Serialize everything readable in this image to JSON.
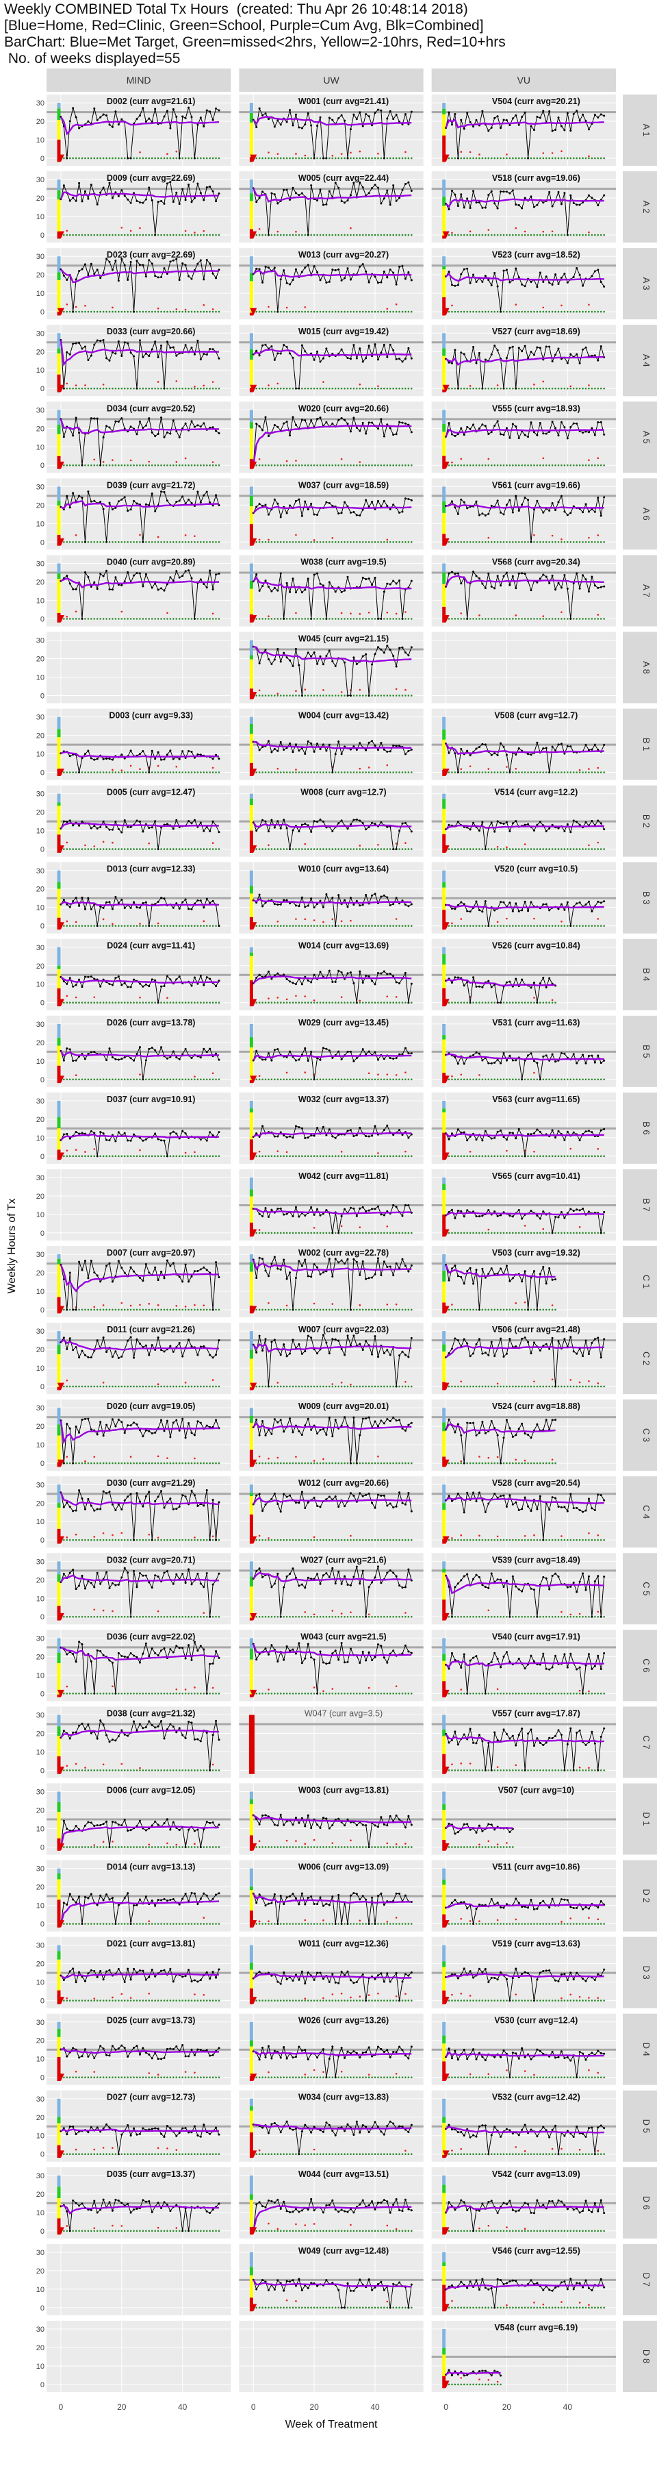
{
  "header": {
    "line1": "Weekly COMBINED Total Tx Hours  (created: Thu Apr 26 10:48:14 2018)",
    "line2": "[Blue=Home, Red=Clinic, Green=School, Purple=Cum Avg, Blk=Combined]",
    "line3": "BarChart: Blue=Met Target, Green=missed<2hrs, Yellow=2-10hrs, Red=10+hrs",
    "line4": " No. of weeks displayed=55"
  },
  "colors": {
    "panel_bg": "#ebebeb",
    "strip_bg": "#d9d9d9",
    "combined": "#000000",
    "home": "#1f3fd1",
    "clinic": "#e8201c",
    "school": "#2a8a2a",
    "cum_avg": "#9b00e0",
    "target_line": "#a8a8a8",
    "bar_met": "#7fb3e0",
    "bar_missed2": "#22cc22",
    "bar_2to10": "#ffff00",
    "bar_10plus": "#dd0000"
  },
  "chart_data": {
    "type": "line",
    "xlabel": "Week of Treatment",
    "ylabel": "Weekly Hours of Tx",
    "x_ticks": [
      "0",
      "20",
      "40"
    ],
    "y_ticks": [
      "0",
      "10",
      "20",
      "30"
    ],
    "xlim": [
      -2,
      55
    ],
    "ylim": [
      -3,
      33
    ],
    "columns": [
      "MIND",
      "UW",
      "VU"
    ],
    "rows": [
      {
        "label": "A\n1",
        "cells": [
          {
            "id": "D002",
            "avg": "21.61"
          },
          {
            "id": "W001",
            "avg": "21.41"
          },
          {
            "id": "V504",
            "avg": "20.21"
          }
        ]
      },
      {
        "label": "A\n2",
        "cells": [
          {
            "id": "D009",
            "avg": "22.69"
          },
          {
            "id": "W005",
            "avg": "22.44"
          },
          {
            "id": "V518",
            "avg": "19.06"
          }
        ]
      },
      {
        "label": "A\n3",
        "cells": [
          {
            "id": "D023",
            "avg": "22.69"
          },
          {
            "id": "W013",
            "avg": "20.27"
          },
          {
            "id": "V523",
            "avg": "18.52"
          }
        ]
      },
      {
        "label": "A\n4",
        "cells": [
          {
            "id": "D033",
            "avg": "20.66"
          },
          {
            "id": "W015",
            "avg": "19.42"
          },
          {
            "id": "V527",
            "avg": "18.69"
          }
        ]
      },
      {
        "label": "A\n5",
        "cells": [
          {
            "id": "D034",
            "avg": "20.52"
          },
          {
            "id": "W020",
            "avg": "20.66"
          },
          {
            "id": "V555",
            "avg": "18.93"
          }
        ]
      },
      {
        "label": "A\n6",
        "cells": [
          {
            "id": "D039",
            "avg": "21.72"
          },
          {
            "id": "W037",
            "avg": "18.59"
          },
          {
            "id": "V561",
            "avg": "19.66"
          }
        ]
      },
      {
        "label": "A\n7",
        "cells": [
          {
            "id": "D040",
            "avg": "20.89"
          },
          {
            "id": "W038",
            "avg": "19.5"
          },
          {
            "id": "V568",
            "avg": "20.34"
          }
        ]
      },
      {
        "label": "A\n8",
        "cells": [
          null,
          {
            "id": "W045",
            "avg": "21.15"
          },
          null
        ]
      },
      {
        "label": "B\n1",
        "cells": [
          {
            "id": "D003",
            "avg": "9.33"
          },
          {
            "id": "W004",
            "avg": "13.42"
          },
          {
            "id": "V508",
            "avg": "12.7"
          }
        ]
      },
      {
        "label": "B\n2",
        "cells": [
          {
            "id": "D005",
            "avg": "12.47"
          },
          {
            "id": "W008",
            "avg": "12.7"
          },
          {
            "id": "V514",
            "avg": "12.2"
          }
        ]
      },
      {
        "label": "B\n3",
        "cells": [
          {
            "id": "D013",
            "avg": "12.33"
          },
          {
            "id": "W010",
            "avg": "13.64"
          },
          {
            "id": "V520",
            "avg": "10.5"
          }
        ]
      },
      {
        "label": "B\n4",
        "cells": [
          {
            "id": "D024",
            "avg": "11.41"
          },
          {
            "id": "W014",
            "avg": "13.69"
          },
          {
            "id": "V526",
            "avg": "10.84"
          }
        ]
      },
      {
        "label": "B\n5",
        "cells": [
          {
            "id": "D026",
            "avg": "13.78"
          },
          {
            "id": "W029",
            "avg": "13.45"
          },
          {
            "id": "V531",
            "avg": "11.63"
          }
        ]
      },
      {
        "label": "B\n6",
        "cells": [
          {
            "id": "D037",
            "avg": "10.91"
          },
          {
            "id": "W032",
            "avg": "13.37"
          },
          {
            "id": "V563",
            "avg": "11.65"
          }
        ]
      },
      {
        "label": "B\n7",
        "cells": [
          null,
          {
            "id": "W042",
            "avg": "11.81"
          },
          {
            "id": "V565",
            "avg": "10.41"
          }
        ]
      },
      {
        "label": "C\n1",
        "cells": [
          {
            "id": "D007",
            "avg": "20.97"
          },
          {
            "id": "W002",
            "avg": "22.78"
          },
          {
            "id": "V503",
            "avg": "19.32"
          }
        ]
      },
      {
        "label": "C\n2",
        "cells": [
          {
            "id": "D011",
            "avg": "21.26"
          },
          {
            "id": "W007",
            "avg": "22.03"
          },
          {
            "id": "V506",
            "avg": "21.48"
          }
        ]
      },
      {
        "label": "C\n3",
        "cells": [
          {
            "id": "D020",
            "avg": "19.05"
          },
          {
            "id": "W009",
            "avg": "20.01"
          },
          {
            "id": "V524",
            "avg": "18.88"
          }
        ]
      },
      {
        "label": "C\n4",
        "cells": [
          {
            "id": "D030",
            "avg": "21.29"
          },
          {
            "id": "W012",
            "avg": "20.66"
          },
          {
            "id": "V528",
            "avg": "20.54"
          }
        ]
      },
      {
        "label": "C\n5",
        "cells": [
          {
            "id": "D032",
            "avg": "20.71"
          },
          {
            "id": "W027",
            "avg": "21.6"
          },
          {
            "id": "V539",
            "avg": "18.49"
          }
        ]
      },
      {
        "label": "C\n6",
        "cells": [
          {
            "id": "D036",
            "avg": "22.02"
          },
          {
            "id": "W043",
            "avg": "21.5"
          },
          {
            "id": "V540",
            "avg": "17.91"
          }
        ]
      },
      {
        "label": "C\n7",
        "cells": [
          {
            "id": "D038",
            "avg": "21.32"
          },
          {
            "id": "W047",
            "avg": "3.5"
          },
          {
            "id": "V557",
            "avg": "17.87"
          }
        ]
      },
      {
        "label": "D\n1",
        "cells": [
          {
            "id": "D006",
            "avg": "12.05"
          },
          {
            "id": "W003",
            "avg": "13.81"
          },
          {
            "id": "V507",
            "avg": "10"
          }
        ]
      },
      {
        "label": "D\n2",
        "cells": [
          {
            "id": "D014",
            "avg": "13.13"
          },
          {
            "id": "W006",
            "avg": "13.09"
          },
          {
            "id": "V511",
            "avg": "10.86"
          }
        ]
      },
      {
        "label": "D\n3",
        "cells": [
          {
            "id": "D021",
            "avg": "13.81"
          },
          {
            "id": "W011",
            "avg": "12.36"
          },
          {
            "id": "V519",
            "avg": "13.63"
          }
        ]
      },
      {
        "label": "D\n4",
        "cells": [
          {
            "id": "D025",
            "avg": "13.73"
          },
          {
            "id": "W026",
            "avg": "13.26"
          },
          {
            "id": "V530",
            "avg": "12.4"
          }
        ]
      },
      {
        "label": "D\n5",
        "cells": [
          {
            "id": "D027",
            "avg": "12.73"
          },
          {
            "id": "W034",
            "avg": "13.83"
          },
          {
            "id": "V532",
            "avg": "12.42"
          }
        ]
      },
      {
        "label": "D\n6",
        "cells": [
          {
            "id": "D035",
            "avg": "13.37"
          },
          {
            "id": "W044",
            "avg": "13.51"
          },
          {
            "id": "V542",
            "avg": "13.09"
          }
        ]
      },
      {
        "label": "D\n7",
        "cells": [
          null,
          {
            "id": "W049",
            "avg": "12.48"
          },
          {
            "id": "V546",
            "avg": "12.55"
          }
        ]
      },
      {
        "label": "D\n8",
        "cells": [
          null,
          null,
          {
            "id": "V548",
            "avg": "6.19"
          }
        ]
      }
    ]
  }
}
